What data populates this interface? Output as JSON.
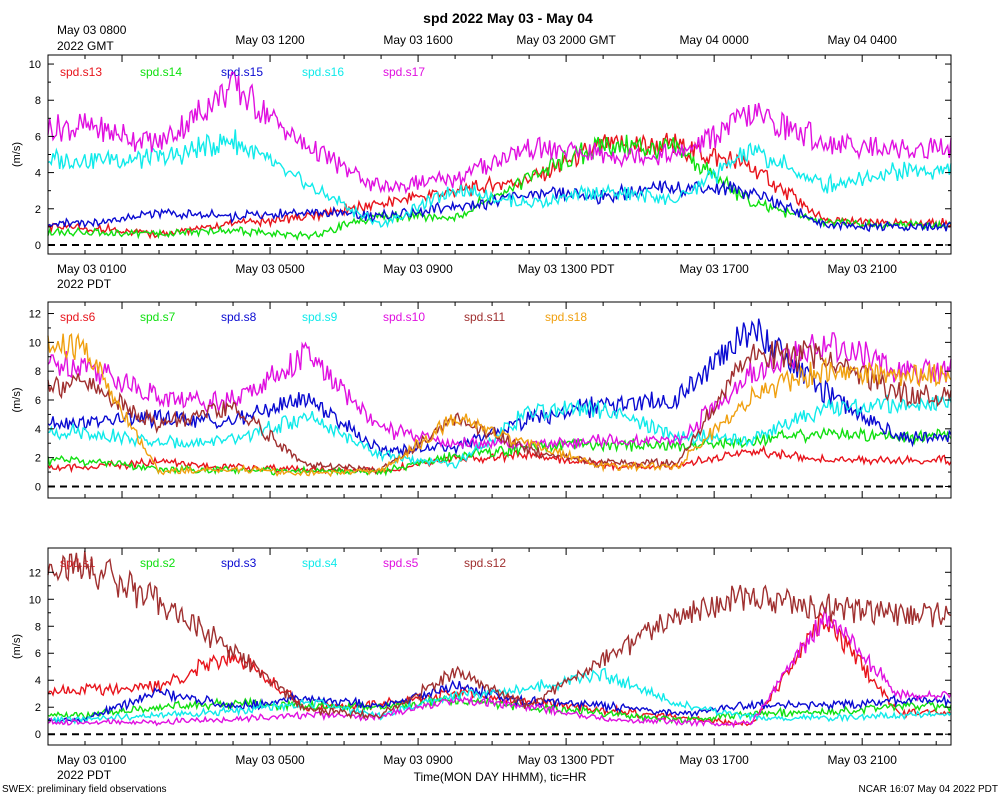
{
  "title": "spd 2022 May 03 - May 04",
  "footer_left": "SWEX: preliminary field observations",
  "footer_right": "NCAR 16:07 May 04 2022 PDT",
  "xlabel": "Time(MON DAY HHMM), tic=HR",
  "x_range_hours": [
    -1,
    23.4
  ],
  "gmt_labels": [
    "May 03 0800",
    "May 03 1200",
    "May 03 1600",
    "May 03 2000 GMT",
    "May 04 0000",
    "May 04 0400"
  ],
  "gmt_year_label": "2022 GMT",
  "pdt_labels": [
    "May 03 0100",
    "May 03 0500",
    "May 03 0900",
    "May 03 1300 PDT",
    "May 03 1700",
    "May 03 2100"
  ],
  "pdt_year_label": "2022 PDT",
  "bottom_pdt_labels": [
    "May 03 0100",
    "May 03 0500",
    "May 03 0900",
    "May 03 1300 PDT",
    "May 03 1700",
    "May 03 2100"
  ],
  "bottom_year_label": "2022 PDT",
  "colors": {
    "red": "#e8141c",
    "green": "#10e010",
    "blue": "#0a0ad2",
    "cyan": "#10eaea",
    "magenta": "#e010e0",
    "brown": "#a03030",
    "orange": "#f0a010"
  },
  "chart_data": [
    {
      "type": "line",
      "panel": "top",
      "ylabel": "(m/s)",
      "ylim": [
        -0.5,
        10.5
      ],
      "yticks": [
        0,
        2,
        4,
        6,
        8,
        10
      ],
      "zero_line": "dashed",
      "x_unit": "hours from May 03 0000 PDT",
      "x": [
        0,
        2,
        4,
        6,
        8,
        10,
        12,
        14,
        16,
        18,
        20,
        22
      ],
      "series": [
        {
          "name": "spd.s13",
          "color": "#e8141c",
          "values": [
            1.0,
            0.6,
            1.2,
            1.5,
            2.3,
            3.0,
            3.6,
            5.5,
            5.5,
            4.3,
            1.3,
            1.2
          ]
        },
        {
          "name": "spd.s14",
          "color": "#10e010",
          "values": [
            0.7,
            0.6,
            0.8,
            0.5,
            1.6,
            1.5,
            3.8,
            5.5,
            5.3,
            2.3,
            1.3,
            1.1
          ]
        },
        {
          "name": "spd.s15",
          "color": "#0a0ad2",
          "values": [
            1.2,
            1.7,
            1.6,
            1.8,
            1.6,
            2.1,
            2.8,
            2.7,
            3.2,
            3.0,
            1.1,
            1.0
          ]
        },
        {
          "name": "spd.s16",
          "color": "#10eaea",
          "values": [
            4.7,
            4.8,
            5.8,
            3.3,
            1.1,
            3.1,
            2.3,
            3.0,
            2.5,
            5.2,
            3.3,
            4.1
          ]
        },
        {
          "name": "spd.s17",
          "color": "#e010e0",
          "values": [
            6.5,
            5.6,
            8.8,
            5.4,
            3.1,
            3.7,
            5.4,
            5.0,
            5.0,
            7.2,
            5.7,
            5.3
          ]
        }
      ]
    },
    {
      "type": "line",
      "panel": "middle",
      "ylabel": "(m/s)",
      "ylim": [
        -0.8,
        12.8
      ],
      "yticks": [
        0,
        2,
        4,
        6,
        8,
        10,
        12
      ],
      "zero_line": "dashed",
      "x_unit": "hours from May 03 0000 PDT",
      "x": [
        0,
        2,
        4,
        6,
        8,
        10,
        12,
        14,
        16,
        18,
        20,
        22
      ],
      "series": [
        {
          "name": "spd.s6",
          "color": "#e8141c",
          "values": [
            1.3,
            1.7,
            1.3,
            1.2,
            1.1,
            1.9,
            2.2,
            1.5,
            1.4,
            2.5,
            1.8,
            1.8
          ]
        },
        {
          "name": "spd.s7",
          "color": "#10e010",
          "values": [
            1.8,
            1.2,
            1.1,
            1.1,
            1.0,
            2.1,
            2.7,
            2.9,
            2.8,
            3.2,
            3.7,
            3.5
          ]
        },
        {
          "name": "spd.s8",
          "color": "#0a0ad2",
          "values": [
            4.5,
            4.7,
            4.5,
            6.2,
            2.5,
            2.7,
            4.8,
            5.6,
            6.0,
            11.0,
            6.5,
            3.4
          ]
        },
        {
          "name": "spd.s9",
          "color": "#10eaea",
          "values": [
            3.8,
            3.0,
            3.2,
            4.8,
            2.2,
            1.5,
            5.2,
            5.3,
            3.5,
            3.3,
            5.3,
            5.8
          ]
        },
        {
          "name": "spd.s10",
          "color": "#e010e0",
          "values": [
            8.5,
            6.2,
            5.9,
            9.1,
            4.0,
            3.0,
            2.9,
            3.2,
            3.2,
            7.7,
            10.1,
            8.0
          ]
        },
        {
          "name": "spd.s11",
          "color": "#a03030",
          "values": [
            7.1,
            4.3,
            5.4,
            1.5,
            1.2,
            4.7,
            2.5,
            1.6,
            1.6,
            9.3,
            9.0,
            6.5
          ]
        },
        {
          "name": "spd.s18",
          "color": "#f0a010",
          "values": [
            9.6,
            1.0,
            1.2,
            0.9,
            1.1,
            4.8,
            2.9,
            1.4,
            1.4,
            6.3,
            8.1,
            7.8
          ]
        }
      ]
    },
    {
      "type": "line",
      "panel": "bottom",
      "ylabel": "(m/s)",
      "ylim": [
        -0.8,
        13.8
      ],
      "yticks": [
        0,
        2,
        4,
        6,
        8,
        10,
        12
      ],
      "zero_line": "dashed",
      "x_unit": "hours from May 03 0000 PDT",
      "x": [
        0,
        2,
        4,
        6,
        8,
        10,
        12,
        14,
        16,
        18,
        20,
        22
      ],
      "series": [
        {
          "name": "spd.s1",
          "color": "#e8141c",
          "values": [
            3.3,
            3.5,
            6.0,
            1.9,
            2.2,
            3.1,
            2.4,
            1.8,
            1.3,
            0.7,
            8.6,
            1.6
          ]
        },
        {
          "name": "spd.s2",
          "color": "#10e010",
          "values": [
            1.4,
            2.0,
            2.3,
            2.1,
            2.0,
            2.6,
            2.0,
            1.6,
            1.0,
            1.6,
            1.6,
            2.1
          ]
        },
        {
          "name": "spd.s3",
          "color": "#0a0ad2",
          "values": [
            1.1,
            3.2,
            2.0,
            2.7,
            2.1,
            3.6,
            2.4,
            2.1,
            1.5,
            2.2,
            2.2,
            2.5
          ]
        },
        {
          "name": "spd.s4",
          "color": "#10eaea",
          "values": [
            1.1,
            1.4,
            1.7,
            2.4,
            1.4,
            2.9,
            3.4,
            4.5,
            2.2,
            1.3,
            1.2,
            1.4
          ]
        },
        {
          "name": "spd.s5",
          "color": "#e010e0",
          "values": [
            0.9,
            0.9,
            1.1,
            1.4,
            1.3,
            2.6,
            2.1,
            1.1,
            0.9,
            0.8,
            8.9,
            2.9
          ]
        },
        {
          "name": "spd.s12",
          "color": "#a03030",
          "values": [
            12.5,
            9.8,
            6.2,
            1.8,
            1.4,
            4.6,
            2.1,
            5.5,
            9.0,
            10.3,
            9.4,
            8.8
          ]
        }
      ]
    }
  ]
}
